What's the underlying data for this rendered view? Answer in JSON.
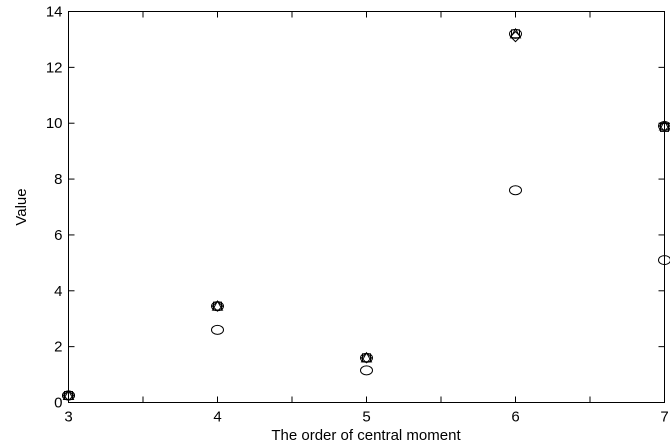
{
  "chart_data": {
    "type": "scatter",
    "title": "",
    "xlabel": "The order of central moment",
    "ylabel": "Value",
    "xlim": [
      3,
      7
    ],
    "ylim": [
      0,
      14
    ],
    "xticks": [
      3,
      4,
      5,
      6,
      7
    ],
    "yticks": [
      0,
      2,
      4,
      6,
      8,
      10,
      12,
      14
    ],
    "grid": false,
    "legend": "none",
    "series": [
      {
        "marker": "circle",
        "x": [
          3,
          4,
          5,
          6,
          7
        ],
        "y": [
          0.25,
          2.6,
          1.15,
          7.6,
          5.1
        ]
      },
      {
        "marker": "circle",
        "x": [
          3,
          4,
          5,
          6,
          7
        ],
        "y": [
          0.25,
          3.45,
          1.6,
          13.2,
          9.9
        ]
      },
      {
        "marker": "square",
        "x": [
          3,
          4,
          5,
          6,
          7
        ],
        "y": [
          0.25,
          3.45,
          1.6,
          13.2,
          9.85
        ]
      },
      {
        "marker": "diamond",
        "x": [
          3,
          4,
          5,
          6,
          7
        ],
        "y": [
          0.25,
          3.45,
          1.6,
          13.1,
          9.9
        ]
      },
      {
        "marker": "triangle",
        "x": [
          3,
          4,
          5,
          6,
          7
        ],
        "y": [
          0.25,
          3.45,
          1.6,
          13.2,
          9.9
        ]
      }
    ]
  }
}
